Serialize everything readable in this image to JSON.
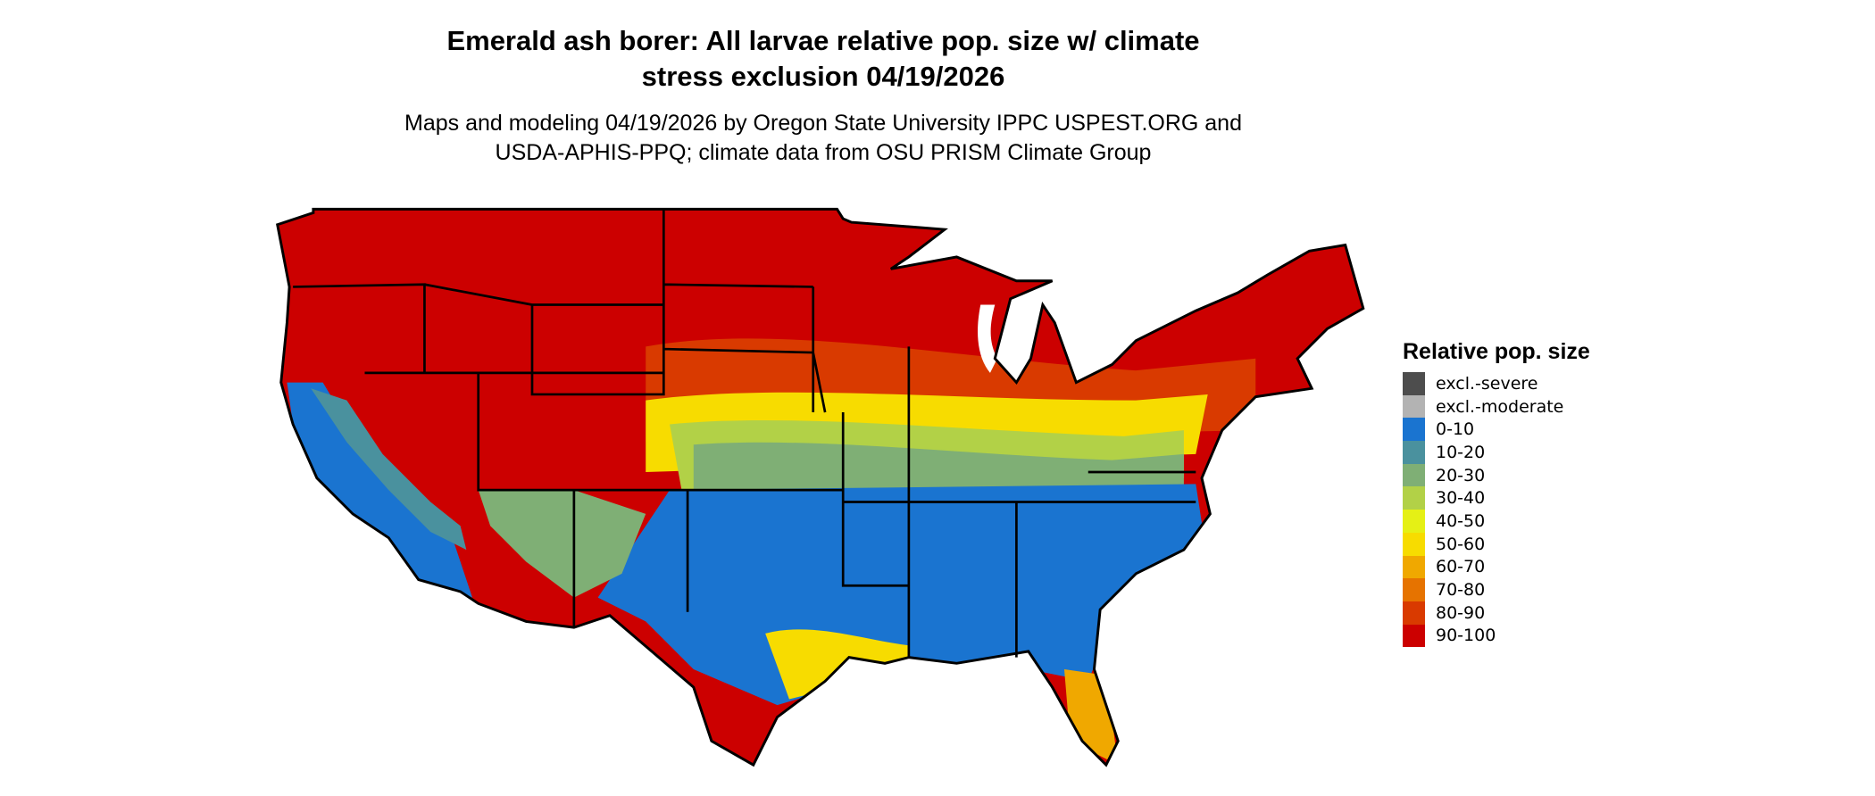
{
  "title_lines": [
    "Emerald ash borer: All larvae relative pop. size w/ climate",
    "stress exclusion 04/19/2026"
  ],
  "subtitle_lines": [
    "Maps and modeling 04/19/2026 by Oregon State University IPPC USPEST.ORG and",
    "USDA-APHIS-PPQ; climate data from OSU PRISM Climate Group"
  ],
  "legend": {
    "title": "Relative pop. size",
    "items": [
      {
        "label": "excl.-severe",
        "color": "#4d4d4d"
      },
      {
        "label": "excl.-moderate",
        "color": "#b3b3b3"
      },
      {
        "label": "0-10",
        "color": "#1a74d0"
      },
      {
        "label": "10-20",
        "color": "#4a919e"
      },
      {
        "label": "20-30",
        "color": "#7faf75"
      },
      {
        "label": "30-40",
        "color": "#b2d147"
      },
      {
        "label": "40-50",
        "color": "#e5f015"
      },
      {
        "label": "50-60",
        "color": "#f7dc00"
      },
      {
        "label": "60-70",
        "color": "#f0a800"
      },
      {
        "label": "70-80",
        "color": "#e67300"
      },
      {
        "label": "80-90",
        "color": "#d93a00"
      },
      {
        "label": "90-100",
        "color": "#cc0000"
      }
    ]
  },
  "map": {
    "region": "Contiguous United States",
    "borders_color": "#000000"
  }
}
